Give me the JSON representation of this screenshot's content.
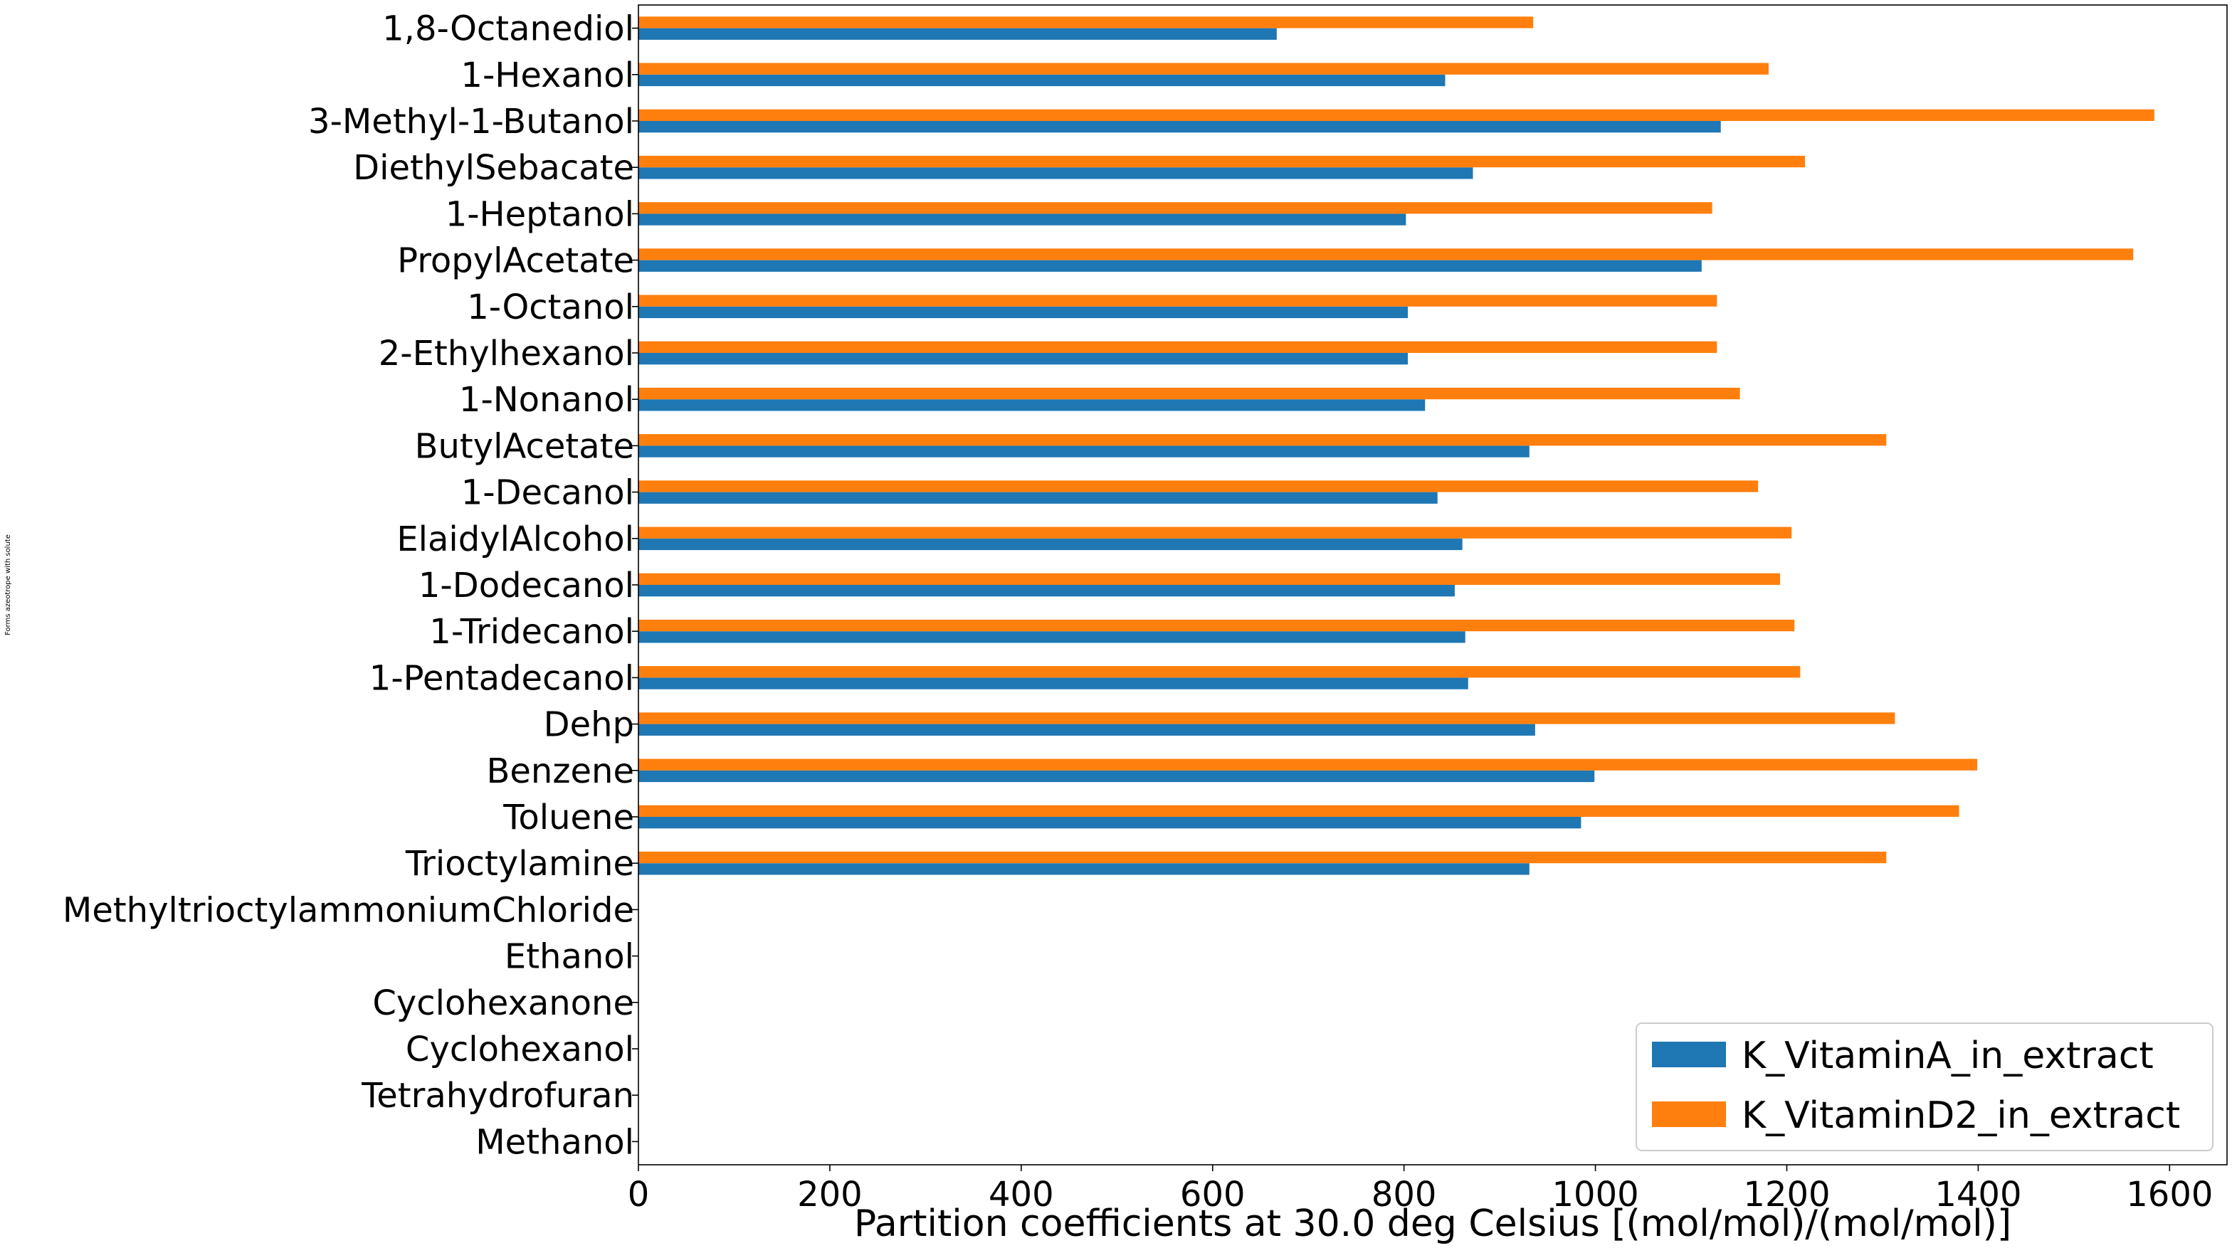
{
  "chart_data": {
    "type": "bar",
    "orientation": "horizontal",
    "title": "",
    "xlabel": "Partition coefficients at 30.0 deg Celsius [(mol/mol)/(mol/mol)]",
    "ylabel": "Forms azeotrope with solute",
    "xlim": [
      0,
      1660
    ],
    "xticks": [
      0,
      200,
      400,
      600,
      800,
      1000,
      1200,
      1400,
      1600
    ],
    "grid": false,
    "legend_position": "bottom-right",
    "categories": [
      "1,8-Octanediol",
      "1-Hexanol",
      "3-Methyl-1-Butanol",
      "DiethylSebacate",
      "1-Heptanol",
      "PropylAcetate",
      "1-Octanol",
      "2-Ethylhexanol",
      "1-Nonanol",
      "ButylAcetate",
      "1-Decanol",
      "ElaidylAlcohol",
      "1-Dodecanol",
      "1-Tridecanol",
      "1-Pentadecanol",
      "Dehp",
      "Benzene",
      "Toluene",
      "Trioctylamine",
      "MethyltrioctylammoniumChloride",
      "Ethanol",
      "Cyclohexanone",
      "Cyclohexanol",
      "Tetrahydrofuran",
      "Methanol"
    ],
    "series": [
      {
        "name": "K_VitaminA_in_extract",
        "color": "#1f77b4",
        "values": [
          667,
          843,
          1131,
          872,
          802,
          1111,
          804,
          804,
          822,
          931,
          835,
          861,
          853,
          864,
          867,
          937,
          999,
          985,
          931,
          0,
          0,
          0,
          0,
          0,
          0
        ]
      },
      {
        "name": "K_VitaminD2_in_extract",
        "color": "#ff7f0e",
        "values": [
          935,
          1181,
          1584,
          1219,
          1122,
          1562,
          1127,
          1127,
          1151,
          1304,
          1170,
          1205,
          1193,
          1208,
          1214,
          1313,
          1399,
          1380,
          1304,
          0,
          0,
          0,
          0,
          0,
          0
        ]
      }
    ]
  }
}
